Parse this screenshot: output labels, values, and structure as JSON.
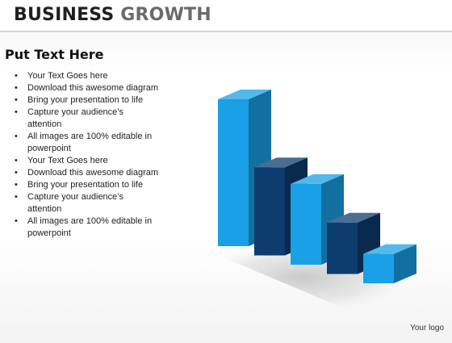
{
  "header": {
    "title_word1": "BUSINESS",
    "title_word2": "GROWTH"
  },
  "content": {
    "subtitle": "Put Text Here",
    "bullets": [
      "Your Text Goes here",
      "Download this awesome diagram",
      "Bring your presentation to life",
      "Capture your audience’s attention",
      "All images are 100% editable in powerpoint",
      "Your Text Goes here",
      "Download this awesome diagram",
      "Bring your presentation to life",
      "Capture your audience’s attention",
      "All images are 100% editable in powerpoint"
    ]
  },
  "footer": {
    "logo": "Your logo"
  },
  "colors": {
    "light_blue": "#1aa0e6",
    "dark_blue": "#0e3c6e"
  },
  "graphic": {
    "bar_heights": [
      100,
      60,
      55,
      35,
      20
    ],
    "bar_colors": [
      "light_blue",
      "dark_blue",
      "light_blue",
      "dark_blue",
      "light_blue"
    ]
  }
}
